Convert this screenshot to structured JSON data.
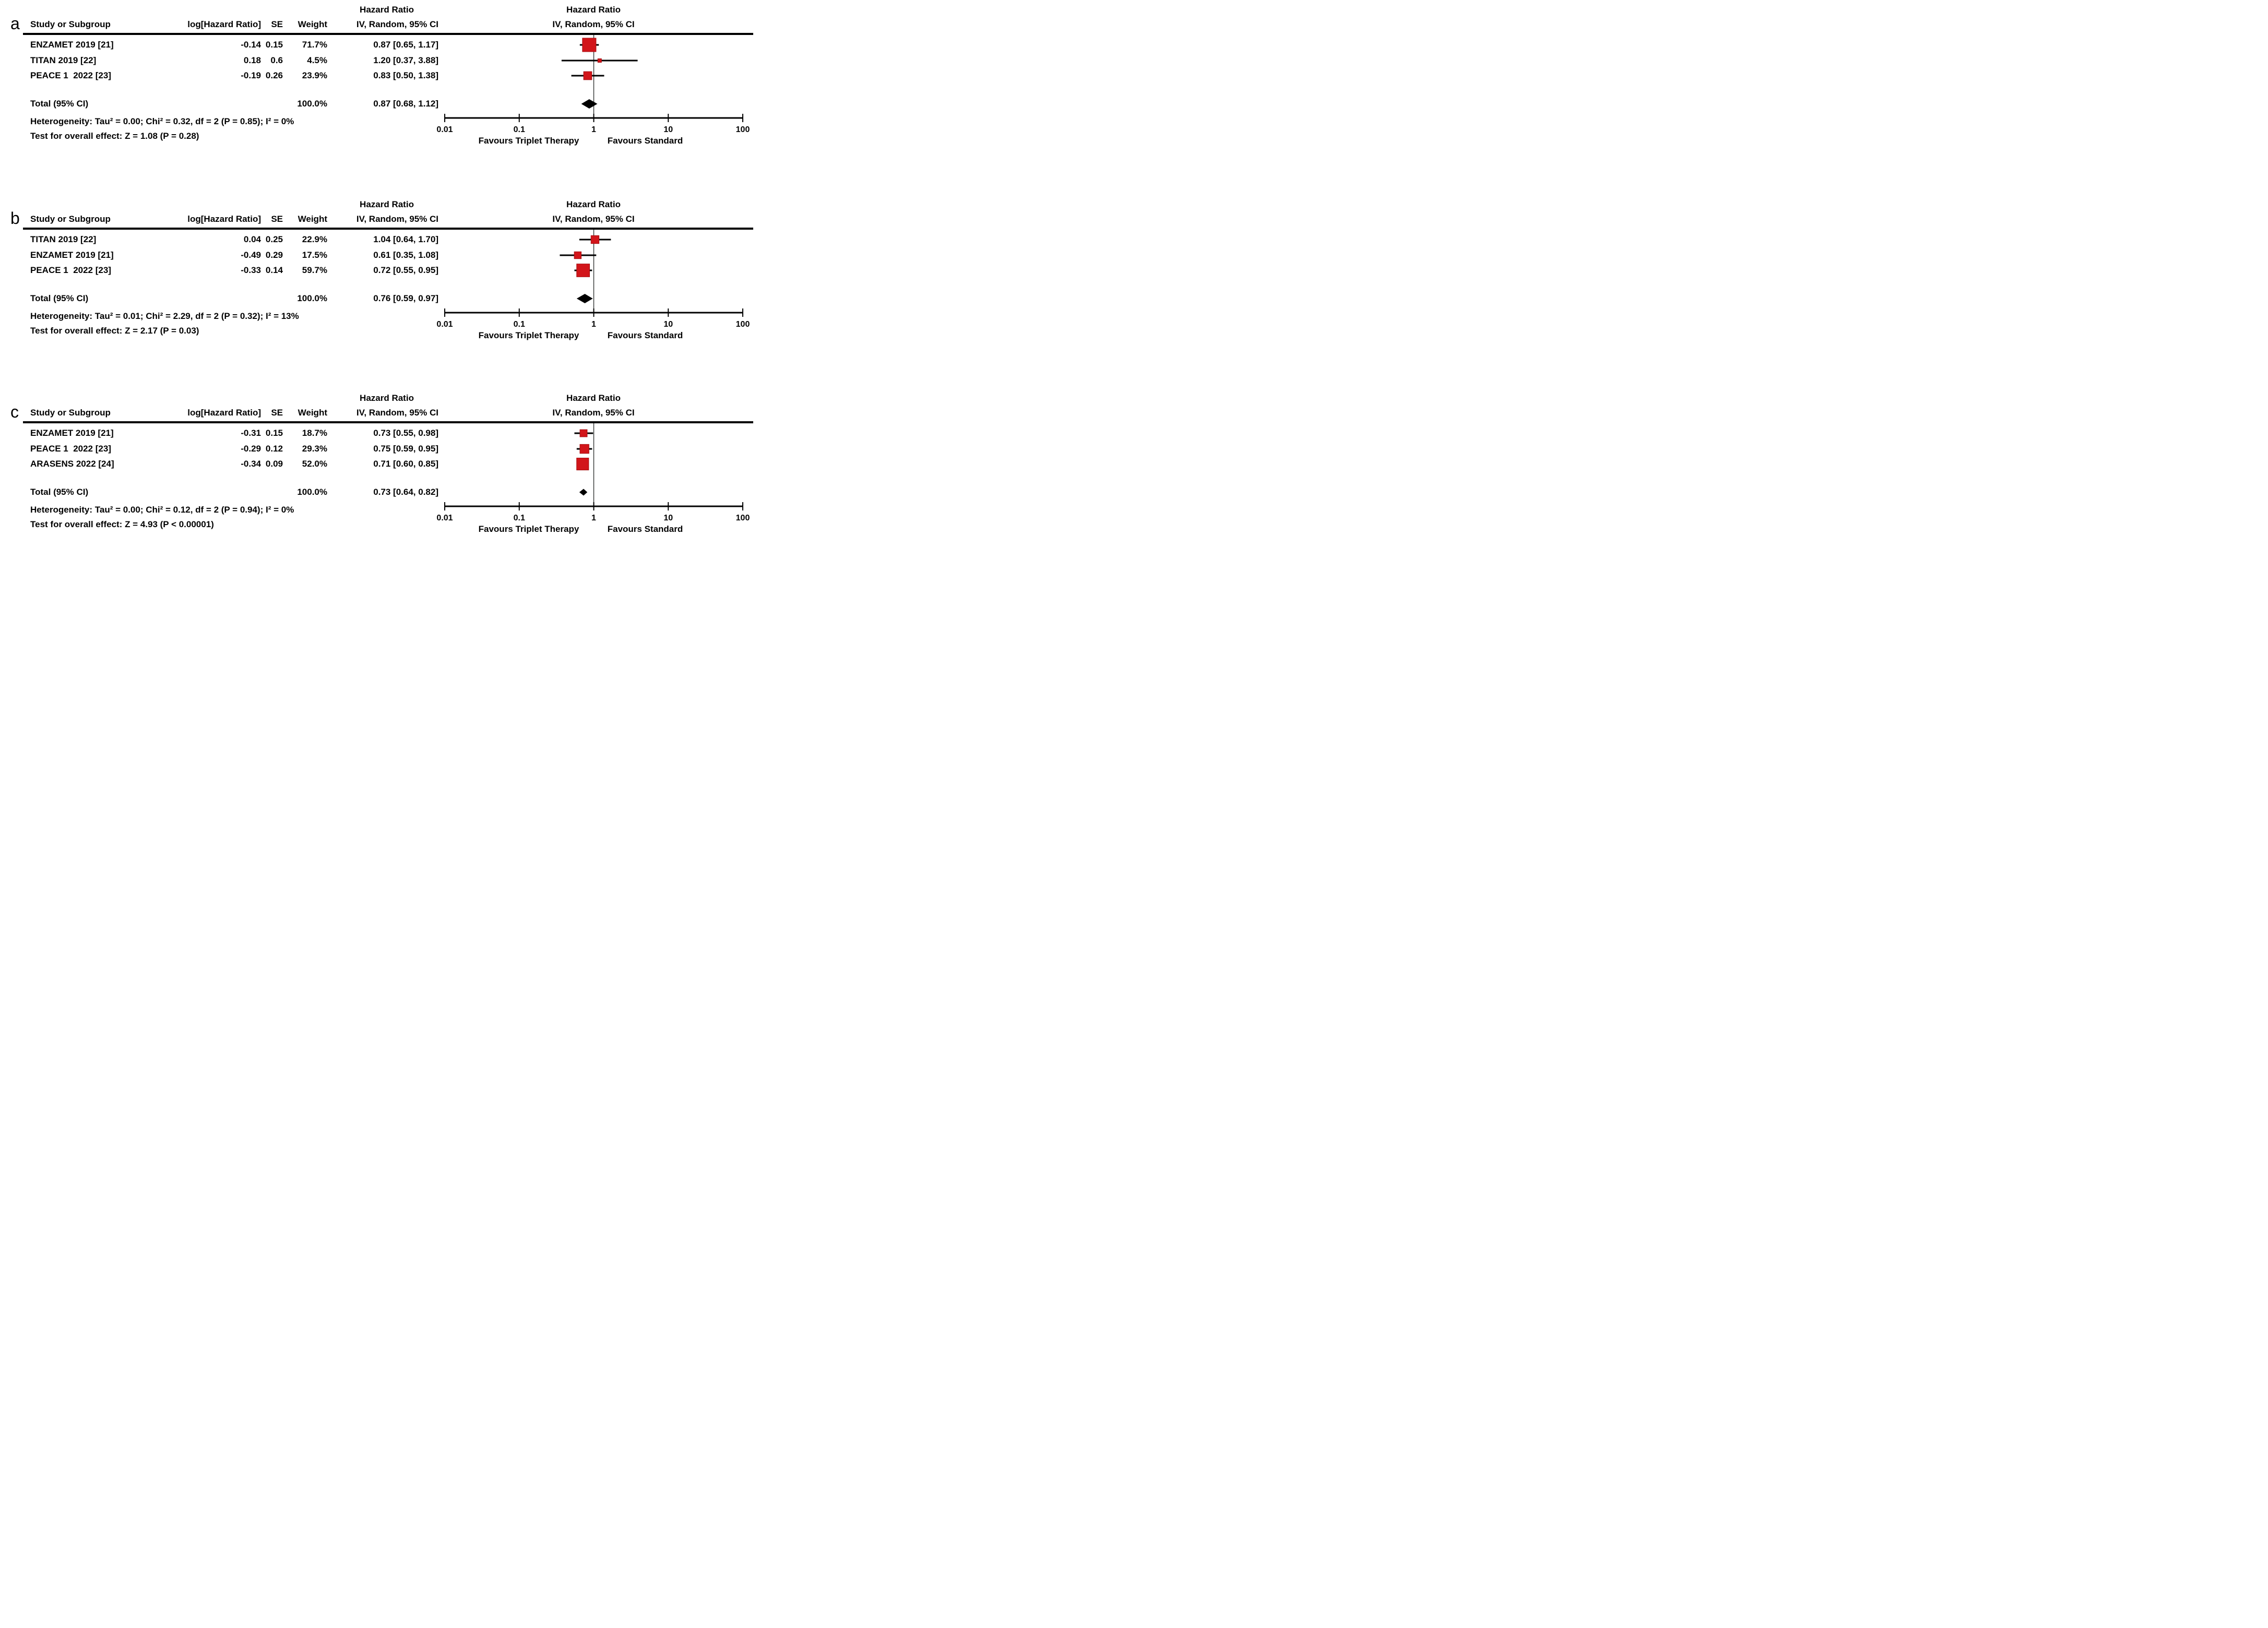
{
  "figure": {
    "background": "#ffffff",
    "marker_color": "#d2151a",
    "marker_edge_color": "#a50d10",
    "line_color": "#000000",
    "guide_line_color": "#3a3f3c",
    "columns": {
      "study": "Study or Subgroup",
      "loghr": "log[Hazard Ratio]",
      "se": "SE",
      "weight": "Weight",
      "hazard_ratio": "Hazard Ratio",
      "ci_method": "IV, Random, 95% CI"
    },
    "axis": {
      "scale": "log10",
      "tick_labels": [
        "0.01",
        "0.1",
        "1",
        "10",
        "100"
      ],
      "tick_values": [
        0.01,
        0.1,
        1,
        10,
        100
      ],
      "left_label": "Favours Triplet Therapy",
      "right_label": "Favours Standard"
    }
  },
  "chart_data": [
    {
      "type": "scatter",
      "subtype": "forest",
      "panel": "a",
      "title": "Hazard Ratio",
      "subtitle": "IV, Random, 95% CI",
      "x_scale": "log10",
      "xlim": [
        0.01,
        100
      ],
      "studies": [
        {
          "name": "ENZAMET 2019 [21]",
          "log_hr": "-0.14",
          "se": "0.15",
          "weight": "71.7%",
          "weight_value": 71.7,
          "ci_text": "0.87 [0.65, 1.17]",
          "hr": 0.87,
          "lo": 0.65,
          "hi": 1.17
        },
        {
          "name": "TITAN 2019 [22]",
          "log_hr": "0.18",
          "se": "0.6",
          "weight": "4.5%",
          "weight_value": 4.5,
          "ci_text": "1.20 [0.37, 3.88]",
          "hr": 1.2,
          "lo": 0.37,
          "hi": 3.88
        },
        {
          "name": "PEACE 1  2022 [23]",
          "log_hr": "-0.19",
          "se": "0.26",
          "weight": "23.9%",
          "weight_value": 23.9,
          "ci_text": "0.83 [0.50, 1.38]",
          "hr": 0.83,
          "lo": 0.5,
          "hi": 1.38
        }
      ],
      "total": {
        "label": "Total (95% CI)",
        "weight": "100.0%",
        "ci_text": "0.87 [0.68, 1.12]",
        "hr": 0.87,
        "lo": 0.68,
        "hi": 1.12
      },
      "heterogeneity": "Heterogeneity: Tau² = 0.00; Chi² = 0.32, df = 2 (P = 0.85); I² = 0%",
      "overall_effect": "Test for overall effect: Z = 1.08 (P = 0.28)"
    },
    {
      "type": "scatter",
      "subtype": "forest",
      "panel": "b",
      "title": "Hazard Ratio",
      "subtitle": "IV, Random, 95% CI",
      "x_scale": "log10",
      "xlim": [
        0.01,
        100
      ],
      "studies": [
        {
          "name": "TITAN 2019 [22]",
          "log_hr": "0.04",
          "se": "0.25",
          "weight": "22.9%",
          "weight_value": 22.9,
          "ci_text": "1.04 [0.64, 1.70]",
          "hr": 1.04,
          "lo": 0.64,
          "hi": 1.7
        },
        {
          "name": "ENZAMET 2019 [21]",
          "log_hr": "-0.49",
          "se": "0.29",
          "weight": "17.5%",
          "weight_value": 17.5,
          "ci_text": "0.61 [0.35, 1.08]",
          "hr": 0.61,
          "lo": 0.35,
          "hi": 1.08
        },
        {
          "name": "PEACE 1  2022 [23]",
          "log_hr": "-0.33",
          "se": "0.14",
          "weight": "59.7%",
          "weight_value": 59.7,
          "ci_text": "0.72 [0.55, 0.95]",
          "hr": 0.72,
          "lo": 0.55,
          "hi": 0.95
        }
      ],
      "total": {
        "label": "Total (95% CI)",
        "weight": "100.0%",
        "ci_text": "0.76 [0.59, 0.97]",
        "hr": 0.76,
        "lo": 0.59,
        "hi": 0.97
      },
      "heterogeneity": "Heterogeneity: Tau² = 0.01; Chi² = 2.29, df = 2 (P = 0.32); I² = 13%",
      "overall_effect": "Test for overall effect: Z = 2.17 (P = 0.03)"
    },
    {
      "type": "scatter",
      "subtype": "forest",
      "panel": "c",
      "title": "Hazard Ratio",
      "subtitle": "IV, Random, 95% CI",
      "x_scale": "log10",
      "xlim": [
        0.01,
        100
      ],
      "studies": [
        {
          "name": "ENZAMET 2019 [21]",
          "log_hr": "-0.31",
          "se": "0.15",
          "weight": "18.7%",
          "weight_value": 18.7,
          "ci_text": "0.73 [0.55, 0.98]",
          "hr": 0.73,
          "lo": 0.55,
          "hi": 0.98
        },
        {
          "name": "PEACE 1  2022 [23]",
          "log_hr": "-0.29",
          "se": "0.12",
          "weight": "29.3%",
          "weight_value": 29.3,
          "ci_text": "0.75 [0.59, 0.95]",
          "hr": 0.75,
          "lo": 0.59,
          "hi": 0.95
        },
        {
          "name": "ARASENS 2022 [24]",
          "log_hr": "-0.34",
          "se": "0.09",
          "weight": "52.0%",
          "weight_value": 52.0,
          "ci_text": "0.71 [0.60, 0.85]",
          "hr": 0.71,
          "lo": 0.6,
          "hi": 0.85
        }
      ],
      "total": {
        "label": "Total (95% CI)",
        "weight": "100.0%",
        "ci_text": "0.73 [0.64, 0.82]",
        "hr": 0.73,
        "lo": 0.64,
        "hi": 0.82
      },
      "heterogeneity": "Heterogeneity: Tau² = 0.00; Chi² = 0.12, df = 2 (P = 0.94); I² = 0%",
      "overall_effect": "Test for overall effect: Z = 4.93 (P < 0.00001)"
    }
  ]
}
